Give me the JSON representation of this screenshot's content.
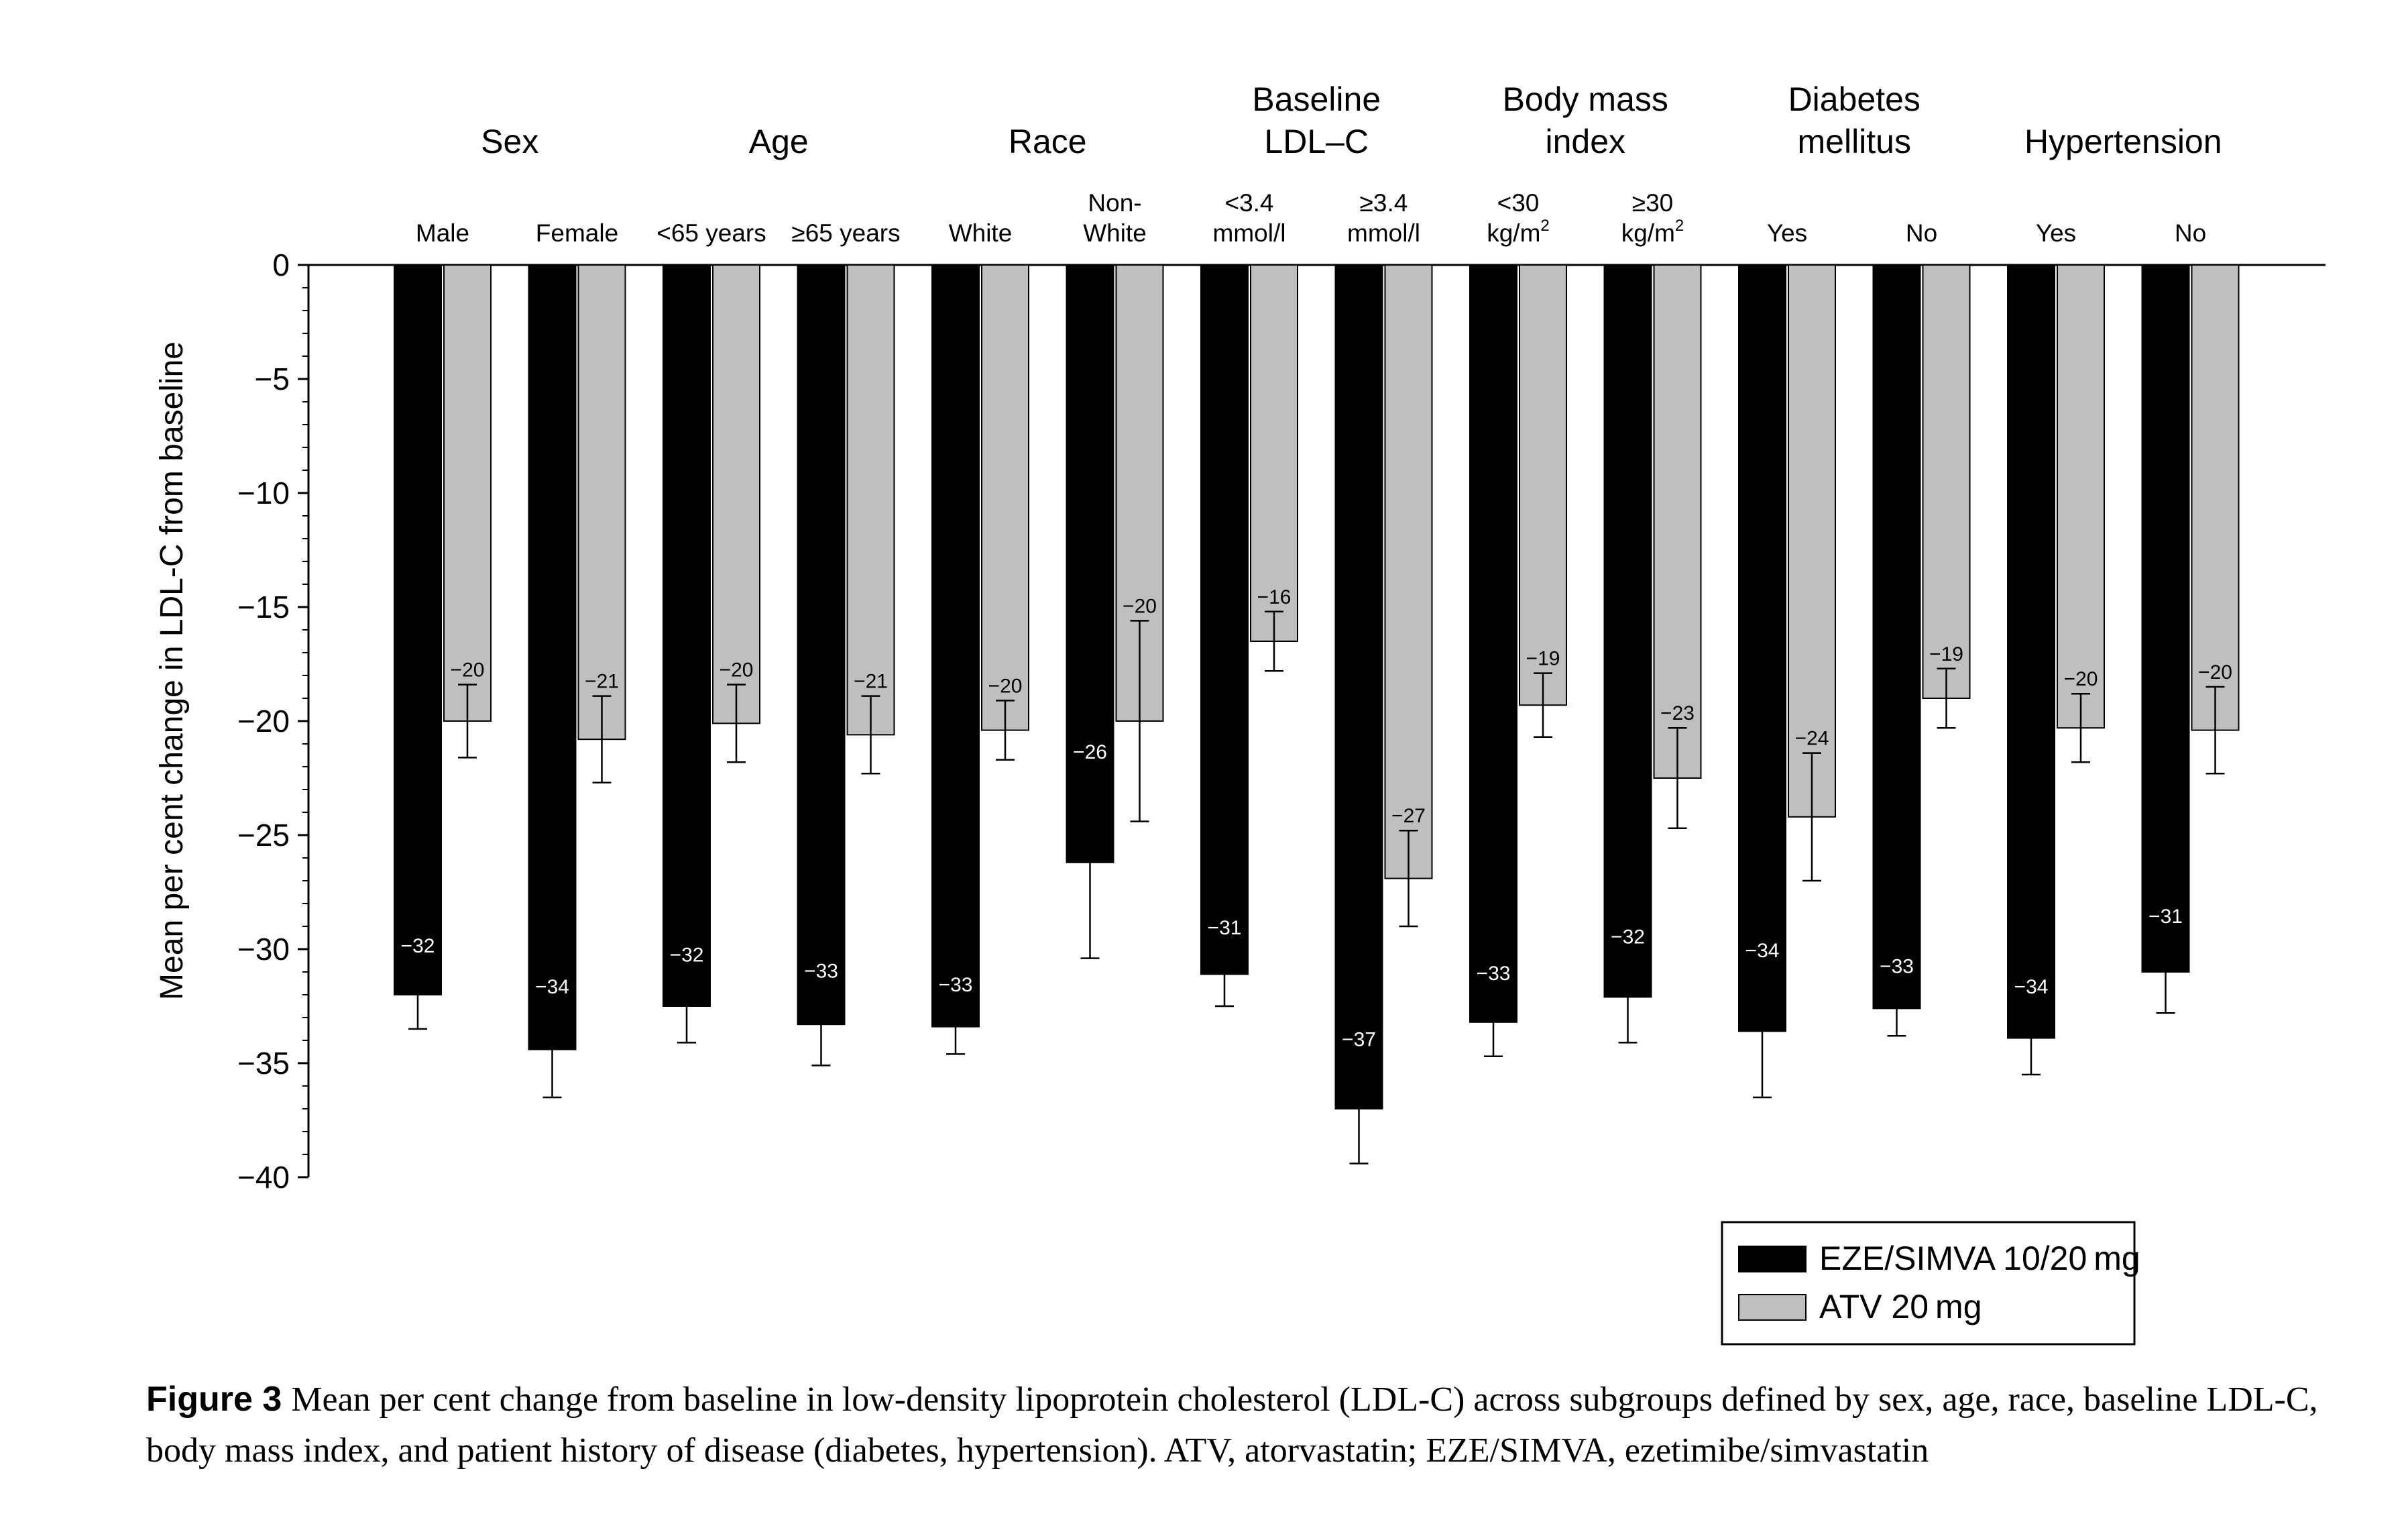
{
  "chart_data": {
    "type": "bar",
    "ylabel": "Mean per cent change in LDL-C from baseline",
    "ylim": [
      -40,
      0
    ],
    "yticks": [
      0,
      -5,
      -10,
      -15,
      -20,
      -25,
      -30,
      -35,
      -40
    ],
    "ytick_labels": [
      "0",
      "−5",
      "−10",
      "−15",
      "−20",
      "−25",
      "−30",
      "−35",
      "−40"
    ],
    "groups": [
      {
        "label_lines": [
          "Sex"
        ],
        "categories": [
          0,
          1
        ]
      },
      {
        "label_lines": [
          "Age"
        ],
        "categories": [
          2,
          3
        ]
      },
      {
        "label_lines": [
          "Race"
        ],
        "categories": [
          4,
          5
        ]
      },
      {
        "label_lines": [
          "Baseline",
          "LDL–C"
        ],
        "categories": [
          6,
          7
        ]
      },
      {
        "label_lines": [
          "Body mass",
          "index"
        ],
        "categories": [
          8,
          9
        ]
      },
      {
        "label_lines": [
          "Diabetes",
          "mellitus"
        ],
        "categories": [
          10,
          11
        ]
      },
      {
        "label_lines": [
          "Hypertension"
        ],
        "categories": [
          12,
          13
        ]
      }
    ],
    "categories": [
      {
        "lines": [
          "Male"
        ],
        "sup": ""
      },
      {
        "lines": [
          "Female"
        ],
        "sup": ""
      },
      {
        "lines": [
          "<65 years"
        ],
        "sup": ""
      },
      {
        "lines": [
          "≥65 years"
        ],
        "sup": ""
      },
      {
        "lines": [
          "White"
        ],
        "sup": ""
      },
      {
        "lines": [
          "Non-",
          "White"
        ],
        "sup": ""
      },
      {
        "lines": [
          "<3.4",
          "mmol/l"
        ],
        "sup": ""
      },
      {
        "lines": [
          "≥3.4",
          "mmol/l"
        ],
        "sup": ""
      },
      {
        "lines": [
          "<30",
          "kg/m"
        ],
        "sup": "2"
      },
      {
        "lines": [
          "≥30",
          "kg/m"
        ],
        "sup": "2"
      },
      {
        "lines": [
          "Yes"
        ],
        "sup": ""
      },
      {
        "lines": [
          "No"
        ],
        "sup": ""
      },
      {
        "lines": [
          "Yes"
        ],
        "sup": ""
      },
      {
        "lines": [
          "No"
        ],
        "sup": ""
      }
    ],
    "series": [
      {
        "name": "EZE/SIMVA 10/20 mg",
        "color": "#000000",
        "values": [
          -32.0,
          -34.4,
          -32.5,
          -33.3,
          -33.4,
          -26.2,
          -31.1,
          -37.0,
          -33.2,
          -32.1,
          -33.6,
          -32.6,
          -33.9,
          -31.0
        ],
        "err_low": [
          -33.5,
          -36.5,
          -34.1,
          -35.1,
          -34.6,
          -30.4,
          -32.5,
          -39.4,
          -34.7,
          -34.1,
          -36.5,
          -33.8,
          -35.5,
          -32.8
        ],
        "err_high": [
          -30.5,
          -32.3,
          -30.9,
          -31.6,
          -32.2,
          -22.0,
          -29.7,
          -34.6,
          -31.7,
          -30.1,
          -30.7,
          -31.4,
          -32.3,
          -29.2
        ],
        "labels": [
          "−32",
          "−34",
          "−32",
          "−33",
          "−33",
          "−26",
          "−31",
          "−37",
          "−33",
          "−32",
          "−34",
          "−33",
          "−34",
          "−31"
        ]
      },
      {
        "name": "ATV 20 mg",
        "color": "#bfbfbf",
        "values": [
          -20.0,
          -20.8,
          -20.1,
          -20.6,
          -20.4,
          -20.0,
          -16.5,
          -26.9,
          -19.3,
          -22.5,
          -24.2,
          -19.0,
          -20.3,
          -20.4
        ],
        "err_low": [
          -21.6,
          -22.7,
          -21.8,
          -22.3,
          -21.7,
          -24.4,
          -17.8,
          -29.0,
          -20.7,
          -24.7,
          -27.0,
          -20.3,
          -21.8,
          -22.3
        ],
        "err_high": [
          -18.4,
          -18.9,
          -18.4,
          -18.9,
          -19.1,
          -15.6,
          -15.2,
          -24.8,
          -17.9,
          -20.3,
          -21.4,
          -17.7,
          -18.8,
          -18.5
        ],
        "labels": [
          "−20",
          "−21",
          "−20",
          "−21",
          "−20",
          "−20",
          "−16",
          "−27",
          "−19",
          "−23",
          "−24",
          "−19",
          "−20",
          "−20"
        ]
      }
    ],
    "legend": {
      "placement": "bottom-right"
    }
  },
  "caption": {
    "figure_number": "Figure 3",
    "text": "Mean per cent change from baseline in low-density lipoprotein cholesterol (LDL-C) across subgroups defined by sex, age, race, baseline LDL-C, body mass index, and patient history of disease (diabetes, hypertension). ATV, atorvastatin; EZE/SIMVA, ezetimibe/simvastatin"
  }
}
